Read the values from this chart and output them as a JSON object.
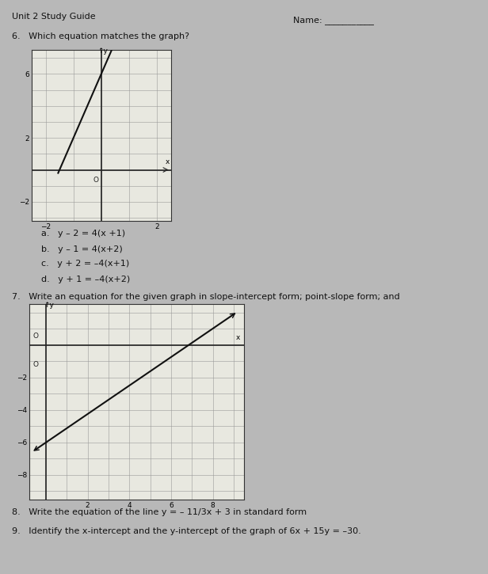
{
  "bg_color": "#b8b8b8",
  "title": "Unit 2 Study Guide",
  "name_label": "Name: ___________",
  "q6_text": "6.   Which equation matches the graph?",
  "q6_choices": [
    "a.   y – 2 = 4(x +1)",
    "b.   y – 1 = 4(x+2)",
    "c.   y + 2 = –4(x+1)",
    "d.   y + 1 = –4(x+2)"
  ],
  "q7_text": "7.   Write an equation for the given graph in slope-intercept form; point-slope form; and",
  "q8_text": "8.   Write the equation of the line y = – 11/3x + 3 in standard form",
  "q9_text": "9.   Identify the x-intercept and the y-intercept of the graph of 6x + 15y = –30.",
  "graph1": {
    "xlim": [
      -2.5,
      2.5
    ],
    "ylim": [
      -3.2,
      7.5
    ],
    "xticks": [
      -2,
      2
    ],
    "yticks": [
      -2,
      2,
      6
    ],
    "grid_color": "#999999",
    "line_color": "#111111",
    "bg_color": "#e8e8e0",
    "slope": 4,
    "intercept": 6,
    "x_start": -1.55,
    "x_end": 0.38
  },
  "graph2": {
    "xlim": [
      -0.8,
      9.5
    ],
    "ylim": [
      -9.5,
      2.5
    ],
    "xticks": [
      2,
      4,
      6,
      8
    ],
    "yticks": [
      -8,
      -6,
      -4,
      -2
    ],
    "grid_color": "#999999",
    "line_color": "#111111",
    "bg_color": "#e8e8e0",
    "slope": 0.875,
    "intercept": -6,
    "x_start": -0.5,
    "x_end": 9.0
  }
}
